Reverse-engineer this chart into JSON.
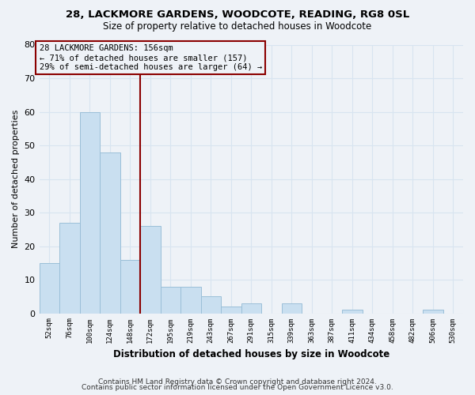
{
  "title": "28, LACKMORE GARDENS, WOODCOTE, READING, RG8 0SL",
  "subtitle": "Size of property relative to detached houses in Woodcote",
  "xlabel": "Distribution of detached houses by size in Woodcote",
  "ylabel": "Number of detached properties",
  "bin_labels": [
    "52sqm",
    "76sqm",
    "100sqm",
    "124sqm",
    "148sqm",
    "172sqm",
    "195sqm",
    "219sqm",
    "243sqm",
    "267sqm",
    "291sqm",
    "315sqm",
    "339sqm",
    "363sqm",
    "387sqm",
    "411sqm",
    "434sqm",
    "458sqm",
    "482sqm",
    "506sqm",
    "530sqm"
  ],
  "bar_values": [
    15,
    27,
    60,
    48,
    16,
    26,
    8,
    8,
    5,
    2,
    3,
    0,
    3,
    0,
    0,
    1,
    0,
    0,
    0,
    1,
    0
  ],
  "bar_color": "#c9dff0",
  "bar_edge_color": "#9bbfd8",
  "vline_x_index": 4.5,
  "annotation_line1": "28 LACKMORE GARDENS: 156sqm",
  "annotation_line2": "← 71% of detached houses are smaller (157)",
  "annotation_line3": "29% of semi-detached houses are larger (64) →",
  "ylim": [
    0,
    80
  ],
  "yticks": [
    0,
    10,
    20,
    30,
    40,
    50,
    60,
    70,
    80
  ],
  "grid_color": "#d8e4f0",
  "bg_color": "#eef2f7",
  "footer_line1": "Contains HM Land Registry data © Crown copyright and database right 2024.",
  "footer_line2": "Contains public sector information licensed under the Open Government Licence v3.0.",
  "vline_color": "#8b0000",
  "ann_box_color": "#8b0000"
}
